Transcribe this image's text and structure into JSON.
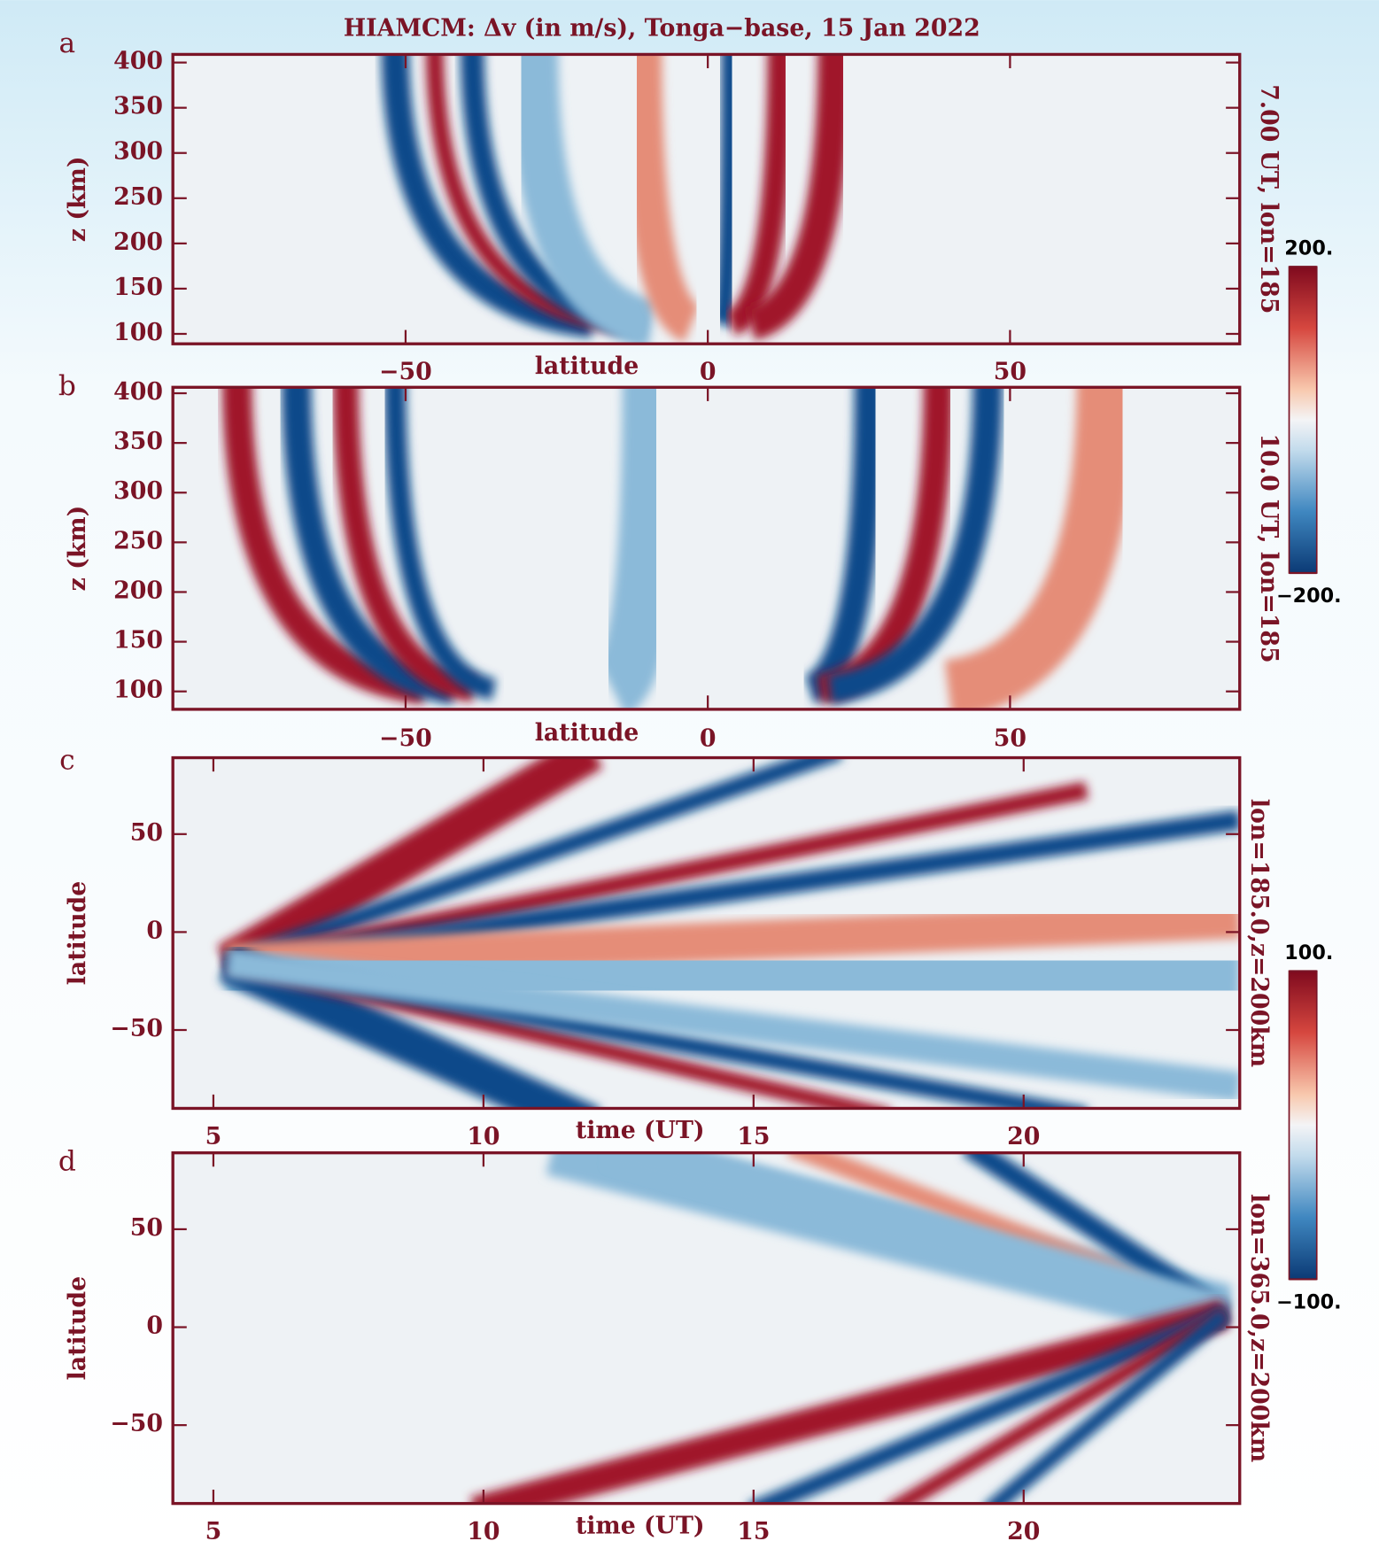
{
  "chart_data": [
    {
      "type": "heatmap",
      "panel": "a",
      "title": "HIAMCM: Δv (in m/s), Tonga−base, 15 Jan 2022",
      "xlabel": "latitude",
      "ylabel": "z (km)",
      "side_label": "7.00 UT, lon=185",
      "xlim": [
        -88.5,
        88
      ],
      "ylim": [
        89,
        409
      ],
      "xticks": [
        {
          "value": -50,
          "label": "−50"
        },
        0,
        50
      ],
      "yticks": [
        100,
        150,
        200,
        250,
        300,
        350,
        400
      ],
      "colorbar": {
        "clim": [
          -200,
          200
        ],
        "ticks": [
          {
            "value": 200,
            "label": "200."
          },
          {
            "value": -200,
            "label": "−200."
          }
        ]
      }
    },
    {
      "type": "heatmap",
      "panel": "b",
      "xlabel": "latitude",
      "ylabel": "z (km)",
      "side_label": "10.0 UT, lon=185",
      "xlim": [
        -88.5,
        88
      ],
      "ylim": [
        82,
        406
      ],
      "xticks": [
        {
          "value": -50,
          "label": "−50"
        },
        0,
        50
      ],
      "yticks": [
        100,
        150,
        200,
        250,
        300,
        350,
        400
      ]
    },
    {
      "type": "heatmap",
      "panel": "c",
      "xlabel": "time (UT)",
      "ylabel": "latitude",
      "side_label": "lon=185.0,z=200km",
      "xlim": [
        4.25,
        24
      ],
      "ylim": [
        -90,
        89
      ],
      "xticks": [
        5,
        10,
        15,
        20
      ],
      "yticks": [
        {
          "value": -50,
          "label": "−50"
        },
        0,
        50
      ],
      "colorbar": {
        "clim": [
          -100,
          100
        ],
        "ticks": [
          {
            "value": 100,
            "label": "100."
          },
          {
            "value": -100,
            "label": "−100."
          }
        ]
      }
    },
    {
      "type": "heatmap",
      "panel": "d",
      "xlabel": "time (UT)",
      "ylabel": "latitude",
      "side_label": "lon=365.0,z=200km",
      "xlim": [
        4.25,
        24
      ],
      "ylim": [
        -90,
        89
      ],
      "xticks": [
        5,
        10,
        15,
        20
      ],
      "yticks": [
        {
          "value": -50,
          "label": "−50"
        },
        0,
        50
      ]
    }
  ]
}
